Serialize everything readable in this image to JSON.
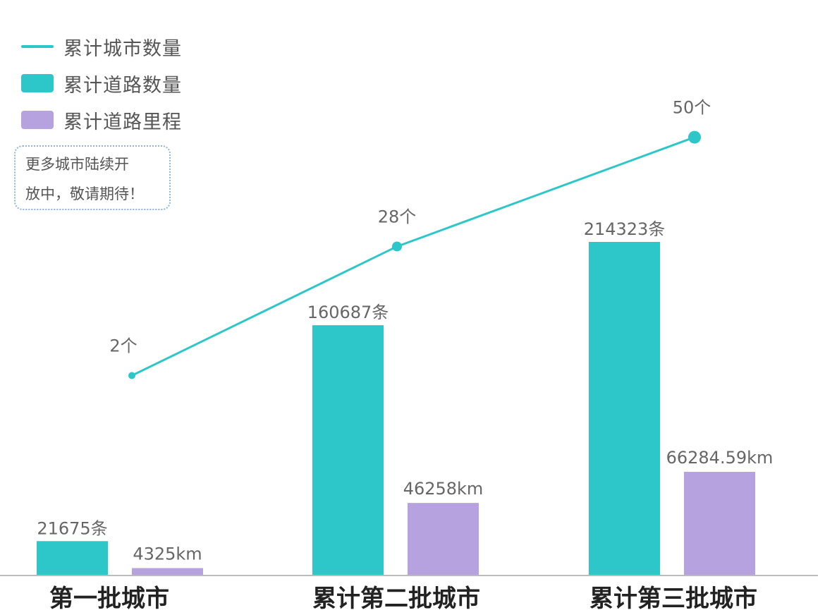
{
  "colors": {
    "city_line": "#2ec7c9",
    "road_count": "#2ec7c9",
    "road_mileage": "#b6a2de",
    "label_text": "#666666",
    "axis": "#bbbbbb",
    "category_text": "#222222"
  },
  "legend": {
    "items": [
      {
        "label": "累计城市数量",
        "kind": "line"
      },
      {
        "label": "累计道路数量",
        "kind": "box"
      },
      {
        "label": "累计道路里程",
        "kind": "box"
      }
    ]
  },
  "note": {
    "line1": "更多城市陆续开",
    "line2": "放中，敬请期待！"
  },
  "chart_data": {
    "type": "bar",
    "categories": [
      "第一批城市",
      "累计第二批城市",
      "累计第三批城市"
    ],
    "series": [
      {
        "name": "累计道路数量",
        "type": "bar",
        "values": [
          21675,
          160687,
          214323
        ],
        "labels": [
          "21675条",
          "160687条",
          "214323条"
        ]
      },
      {
        "name": "累计道路里程",
        "type": "bar",
        "values": [
          4325,
          46258,
          66284.59
        ],
        "labels": [
          "4325km",
          "46258km",
          "66284.59km"
        ]
      },
      {
        "name": "累计城市数量",
        "type": "line",
        "values": [
          2,
          28,
          50
        ],
        "labels": [
          "2个",
          "28个",
          "50个"
        ]
      }
    ],
    "legend_position": "top-left",
    "grid": false
  }
}
